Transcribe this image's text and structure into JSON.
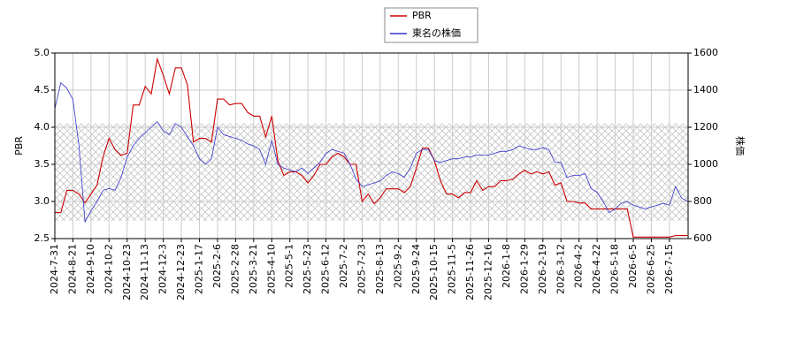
{
  "chart_data": {
    "type": "line",
    "categories": [
      "2024-7-31",
      null,
      null,
      "2024-8-21",
      null,
      null,
      "2024-9-10",
      null,
      null,
      "2024-10-2",
      null,
      null,
      "2024-10-23",
      null,
      null,
      "2024-11-13",
      null,
      null,
      "2024-12-3",
      null,
      null,
      "2024-12-23",
      null,
      null,
      "2025-1-17",
      null,
      null,
      "2025-2-6",
      null,
      null,
      "2025-2-28",
      null,
      null,
      "2025-3-21",
      null,
      null,
      "2025-4-10",
      null,
      null,
      "2025-5-1",
      null,
      null,
      "2025-5-23",
      null,
      null,
      "2025-6-12",
      null,
      null,
      "2025-7-2",
      null,
      null,
      "2025-7-23",
      null,
      null,
      "2025-8-13",
      null,
      null,
      "2025-9-2",
      null,
      null,
      "2025-9-24",
      null,
      null,
      "2025-10-15",
      null,
      null,
      "2025-11-5",
      null,
      null,
      "2025-11-26",
      null,
      null,
      "2025-12-16",
      null,
      null,
      "2026-1-8",
      null,
      null,
      "2026-1-29",
      null,
      null,
      "2026-2-19",
      null,
      null,
      "2026-3-12",
      null,
      null,
      "2026-4-2",
      null,
      null,
      "2026-4-22",
      null,
      null,
      "2026-5-18",
      null,
      null,
      "2026-6-5",
      null,
      null,
      "2026-6-25",
      null,
      null,
      "2026-7-15",
      null,
      null,
      null
    ],
    "series": [
      {
        "name": "PBR",
        "color": "#cc0000",
        "axis": "y",
        "values": [
          2.85,
          2.85,
          3.15,
          3.15,
          3.1,
          2.98,
          3.1,
          3.22,
          3.6,
          3.85,
          3.7,
          3.62,
          3.65,
          4.3,
          4.3,
          4.55,
          4.45,
          4.92,
          4.7,
          4.45,
          4.8,
          4.8,
          4.57,
          3.8,
          3.85,
          3.85,
          3.8,
          4.38,
          4.38,
          4.3,
          4.32,
          4.32,
          4.2,
          4.15,
          4.15,
          3.87,
          4.15,
          3.55,
          3.35,
          3.4,
          3.4,
          3.35,
          3.25,
          3.35,
          3.5,
          3.5,
          3.6,
          3.65,
          3.6,
          3.5,
          3.5,
          3.0,
          3.1,
          2.97,
          3.05,
          3.17,
          3.17,
          3.17,
          3.12,
          3.2,
          3.45,
          3.72,
          3.72,
          3.55,
          3.28,
          3.1,
          3.1,
          3.05,
          3.12,
          3.12,
          3.28,
          3.15,
          3.2,
          3.2,
          3.28,
          3.28,
          3.3,
          3.37,
          3.42,
          3.37,
          3.4,
          3.37,
          3.4,
          3.22,
          3.25,
          3.0,
          3.0,
          2.98,
          2.98,
          2.9,
          2.9,
          2.9,
          2.9,
          2.9,
          2.9,
          2.9,
          2.52,
          2.52,
          2.52,
          2.52,
          2.52,
          2.52,
          2.52,
          2.54,
          2.54,
          2.54
        ]
      },
      {
        "name": "東名の株価",
        "color": "#3333cc",
        "axis": "y2",
        "values": [
          1300,
          1440,
          1410,
          1350,
          1100,
          690,
          750,
          800,
          860,
          870,
          860,
          930,
          1040,
          1100,
          1140,
          1170,
          1200,
          1230,
          1180,
          1160,
          1220,
          1200,
          1150,
          1100,
          1030,
          1000,
          1030,
          1200,
          1160,
          1150,
          1140,
          1130,
          1110,
          1100,
          1080,
          1000,
          1130,
          1000,
          980,
          970,
          960,
          980,
          950,
          980,
          1010,
          1060,
          1080,
          1070,
          1060,
          1000,
          920,
          880,
          890,
          900,
          910,
          940,
          960,
          950,
          930,
          980,
          1060,
          1080,
          1080,
          1020,
          1010,
          1020,
          1030,
          1030,
          1040,
          1040,
          1050,
          1050,
          1050,
          1060,
          1070,
          1070,
          1080,
          1100,
          1090,
          1080,
          1080,
          1090,
          1080,
          1010,
          1010,
          930,
          940,
          940,
          950,
          870,
          850,
          800,
          740,
          760,
          790,
          800,
          780,
          770,
          760,
          770,
          780,
          790,
          780,
          880,
          820,
          800
        ]
      }
    ],
    "ylabel": "PBR",
    "y2label": "株価",
    "ylim": [
      2.5,
      5.0
    ],
    "yticks": [
      {
        "value": 2.5,
        "label": "2.5"
      },
      {
        "value": 3,
        "label": "3.0"
      },
      {
        "value": 3.5,
        "label": "3.5"
      },
      {
        "value": 4,
        "label": "4.0"
      },
      {
        "value": 4.5,
        "label": "4.5"
      },
      {
        "value": 5,
        "label": "5.0"
      }
    ],
    "y2lim": [
      600,
      1600
    ],
    "y2ticks": [
      600,
      800,
      1000,
      1200,
      1400,
      1600
    ],
    "shaded_range": [
      2.74,
      4.05
    ],
    "grid": true,
    "legend": "top"
  }
}
